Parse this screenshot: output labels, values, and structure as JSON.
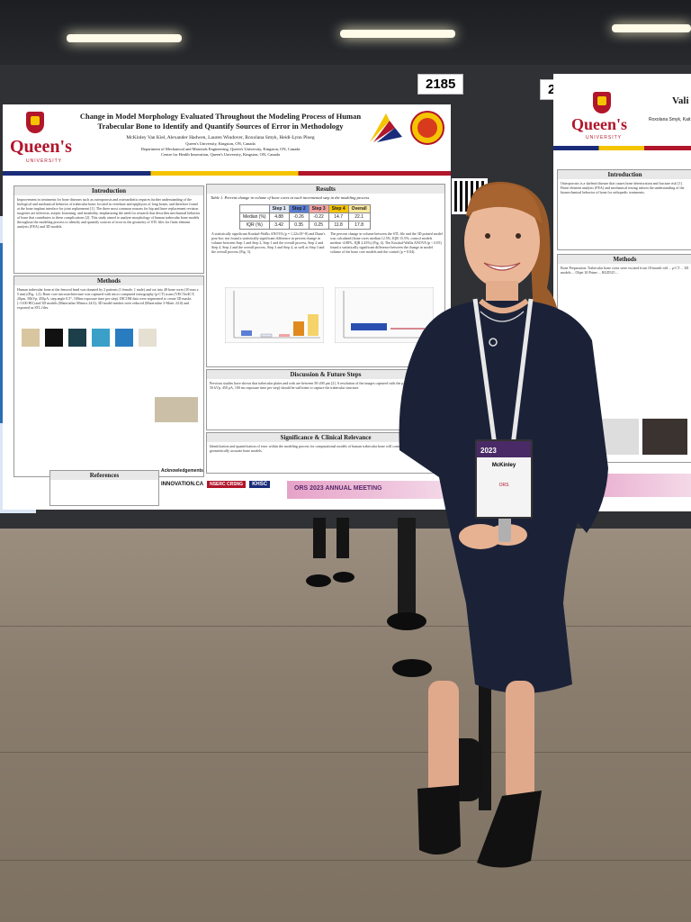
{
  "colors": {
    "queens_red": "#b1162b",
    "queens_gold": "#f5c400",
    "queens_blue": "#1a2b7a",
    "board": "#2f3134",
    "floor": "#8e8272",
    "dress": "#1b2238"
  },
  "board_numbers": {
    "left": "2185",
    "right": "2184"
  },
  "poster_main": {
    "logo_text": "Queen's",
    "logo_sub": "UNIVERSITY",
    "title": "Change in Model Morphology Evaluated Throughout the Modeling Process of Human Trabecular Bone to Identify and Quantify Sources of Error in Methodology",
    "authors": "McKinley Van Kiel, Alexander Hadwen, Lauren Windover, Roxolana Smyk, Heidi-Lynn Ploeg",
    "affil1": "Queen's University, Kingston, ON, Canada",
    "affil2": "Department of Mechanical and Materials Engineering, Queen's University, Kingston, ON, Canada",
    "affil3": "Centre for Health Innovation, Queen's University, Kingston, ON, Canada",
    "sections": {
      "introduction": "Introduction",
      "methods": "Methods",
      "results": "Results",
      "discussion": "Discussion & Future Steps",
      "significance": "Significance & Clinical Relevance",
      "references": "References"
    },
    "intro_text": "Improvement in treatments for bone diseases such as osteoporosis and osteoarthritis requires further understanding of the biological and mechanical behavior of trabecular bone; located in vertebrae and epiphyses of long bones, and therefore found at the bone implant interface for joint replacement [1]. The three most common reasons for hip and knee replacement revision surgeries are infection, aseptic loosening, and instability, emphasizing the need for research that describes mechanical behavior of bone that contributes to these complications [2]. This study aimed to analyze morphology of human trabecular bone models throughout the modeling process to identify and quantify sources of error in the geometry of STL files for finite element analysis (FEA) and 3D models.",
    "methods_text": "Human trabecular bone at the femoral head was donated by 2 patients (1 female, 1 male) and cut into 48 bone cores (10 mm x 5 mm) (Fig. 1,2). Bone core microarchitecture was captured with micro computed tomography (μ-CT) scans (VECTor4CT; 20μm, 50kVp, 450μA, step angle 0.5°, 100ms exposure time per step). DICOM data were segmented to create 3D masks (>1100 HU) and 3D models (Materialise Mimics 24.0); 3D model meshes were reduced (Materialise 3-Matic 24.0) and exported as STL files.",
    "table_caption": "Table 1. Percent change in volume of bone cores at each incremental step in the modeling process",
    "table": {
      "headers": [
        "",
        "Step 1",
        "Step 2",
        "Step 3",
        "Step 4",
        "Overall"
      ],
      "rows": [
        [
          "Median (%)",
          "4.88",
          "-0.26",
          "-0.22",
          "14.7",
          "22.1"
        ],
        [
          "IQR (%)",
          "3.42",
          "0.35",
          "0.25",
          "11.8",
          "17.8"
        ]
      ]
    },
    "results_text_left": "A statistically significant Kruskal-Wallis ANOVA (p = 1.22x10^-8) and Dunn's post-hoc test found a statistically significant difference in percent change in volume between Step 1 and Step 2, Step 1 and the overall process, Step 2 and Step 4, Step 2 and the overall process, Step 3 and Step 4, as well as Step 3 and the overall process (Fig. 3).",
    "results_text_right": "The percent change in volume between the STL file and the 3D printed model was calculated (bone cores median 12.5%, IQR 15.5%; control models median -4.88%, IQR 2.43%) (Fig. 4). The Kruskal-Wallis ANOVA (p < 0.05) found a statistically significant difference between the change in model volume of the bone core models and the control (p = 0.04).",
    "discussion_text": "Previous studies have shown that trabecular plates and rods are between 50-200 μm [2]. A resolution of the images captured with the μ-CT (VECTor4CT; 20 μm, 50 kVp, 450 μA, 100 ms exposure time per step) should be sufficient to capture the trabecular structure.",
    "significance_text": "Identification and quantification of error within the modeling process for computational models of human trabecular bone will contribute to improvement of geometrically accurate bone models.",
    "ack_label": "Acknowledgements",
    "sponsors": [
      "INNOVATION.CA",
      "NSERC CRSNG",
      "KHSC"
    ],
    "footer_banner": "ORS 2023 ANNUAL MEETING"
  },
  "poster_right": {
    "logo_text": "Queen's",
    "logo_sub": "UNIVERSITY",
    "title_partial": "Vali",
    "authors_partial": "Roxolana Smyk, Kait",
    "sections": {
      "introduction": "Introduction",
      "methods": "Methods"
    },
    "intro_text": "Osteoporosis is a skeletal disease that causes bone deterioration and fracture risk [1]. Finite element analysis (FEA) and mechanical testing inform the understanding of the biomechanical behavior of bone for orthopedic treatments.",
    "methods_text": "Bone Preparation: Trabecular bone cores were excised from 18-month-old ... μ-CT ... 3D models ... Objet 30 Prime ... RGD525 ..."
  },
  "badge": {
    "year": "2023",
    "name": "McKinley",
    "event": "ORS"
  }
}
